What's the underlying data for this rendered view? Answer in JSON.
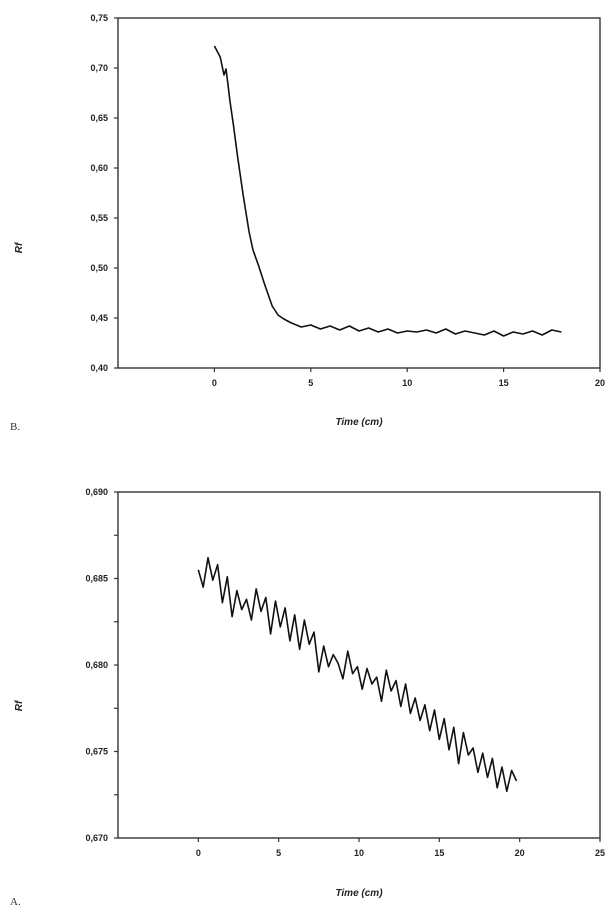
{
  "chart_data": [
    {
      "type": "line",
      "panel_label": "B.",
      "xlabel": "Time (cm)",
      "ylabel": "Rf",
      "xlim": [
        -5,
        20
      ],
      "ylim": [
        0.4,
        0.75
      ],
      "xticks": [
        0,
        5,
        10,
        15,
        20
      ],
      "xtick_labels": [
        "0",
        "5",
        "10",
        "15",
        "20"
      ],
      "yticks": [
        0.4,
        0.45,
        0.5,
        0.55,
        0.6,
        0.65,
        0.7,
        0.75
      ],
      "ytick_labels": [
        "0,40",
        "0,45",
        "0,50",
        "0,55",
        "0,60",
        "0,65",
        "0,70",
        "0,75"
      ],
      "grid": false,
      "series": [
        {
          "x": [
            0.0,
            0.3,
            0.5,
            0.6,
            0.7,
            0.8,
            1.0,
            1.2,
            1.5,
            1.8,
            2.0,
            2.3,
            2.6,
            3.0,
            3.3,
            3.6,
            4.0,
            4.5,
            5.0,
            5.5,
            6.0,
            6.5,
            7.0,
            7.5,
            8.0,
            8.5,
            9.0,
            9.5,
            10.0,
            10.5,
            11.0,
            11.5,
            12.0,
            12.5,
            13.0,
            13.5,
            14.0,
            14.5,
            15.0,
            15.5,
            16.0,
            16.5,
            17.0,
            17.5,
            18.0
          ],
          "y": [
            0.722,
            0.711,
            0.693,
            0.699,
            0.684,
            0.668,
            0.641,
            0.612,
            0.572,
            0.536,
            0.518,
            0.502,
            0.484,
            0.462,
            0.453,
            0.449,
            0.445,
            0.441,
            0.443,
            0.439,
            0.442,
            0.438,
            0.442,
            0.437,
            0.44,
            0.436,
            0.439,
            0.435,
            0.437,
            0.436,
            0.438,
            0.435,
            0.439,
            0.434,
            0.437,
            0.435,
            0.433,
            0.437,
            0.432,
            0.436,
            0.434,
            0.437,
            0.433,
            0.438,
            0.436
          ]
        }
      ]
    },
    {
      "type": "line",
      "panel_label": "A.",
      "xlabel": "Time (cm)",
      "ylabel": "Rf",
      "xlim": [
        -5,
        25
      ],
      "ylim": [
        0.67,
        0.69
      ],
      "xticks": [
        0,
        5,
        10,
        15,
        20,
        25
      ],
      "xtick_labels": [
        "0",
        "5",
        "10",
        "15",
        "20",
        "25"
      ],
      "yticks": [
        0.67,
        0.6725,
        0.675,
        0.6775,
        0.68,
        0.6825,
        0.685,
        0.6875,
        0.69
      ],
      "ytick_labels": [
        "0,670",
        "",
        "0,675",
        "",
        "0,680",
        "",
        "0,685",
        "",
        "0,690"
      ],
      "grid": false,
      "series": [
        {
          "x": [
            0.0,
            0.3,
            0.6,
            0.9,
            1.2,
            1.5,
            1.8,
            2.1,
            2.4,
            2.7,
            3.0,
            3.3,
            3.6,
            3.9,
            4.2,
            4.5,
            4.8,
            5.1,
            5.4,
            5.7,
            6.0,
            6.3,
            6.6,
            6.9,
            7.2,
            7.5,
            7.8,
            8.1,
            8.4,
            8.7,
            9.0,
            9.3,
            9.6,
            9.9,
            10.2,
            10.5,
            10.8,
            11.1,
            11.4,
            11.7,
            12.0,
            12.3,
            12.6,
            12.9,
            13.2,
            13.5,
            13.8,
            14.1,
            14.4,
            14.7,
            15.0,
            15.3,
            15.6,
            15.9,
            16.2,
            16.5,
            16.8,
            17.1,
            17.4,
            17.7,
            18.0,
            18.3,
            18.6,
            18.9,
            19.2,
            19.5,
            19.8
          ],
          "y": [
            0.6855,
            0.6845,
            0.6862,
            0.6849,
            0.6858,
            0.6836,
            0.6851,
            0.6828,
            0.6843,
            0.6832,
            0.6838,
            0.6826,
            0.6844,
            0.6831,
            0.6839,
            0.6818,
            0.6837,
            0.6822,
            0.6833,
            0.6814,
            0.6829,
            0.6809,
            0.6826,
            0.6812,
            0.6819,
            0.6796,
            0.6811,
            0.6799,
            0.6806,
            0.6801,
            0.6792,
            0.6808,
            0.6795,
            0.6799,
            0.6786,
            0.6798,
            0.6789,
            0.6793,
            0.6779,
            0.6797,
            0.6785,
            0.6791,
            0.6776,
            0.6789,
            0.6772,
            0.6781,
            0.6768,
            0.6777,
            0.6762,
            0.6774,
            0.6757,
            0.6769,
            0.6751,
            0.6764,
            0.6743,
            0.6761,
            0.6748,
            0.6752,
            0.6738,
            0.6749,
            0.6735,
            0.6746,
            0.6729,
            0.6741,
            0.6727,
            0.6739,
            0.6733
          ]
        }
      ]
    }
  ]
}
